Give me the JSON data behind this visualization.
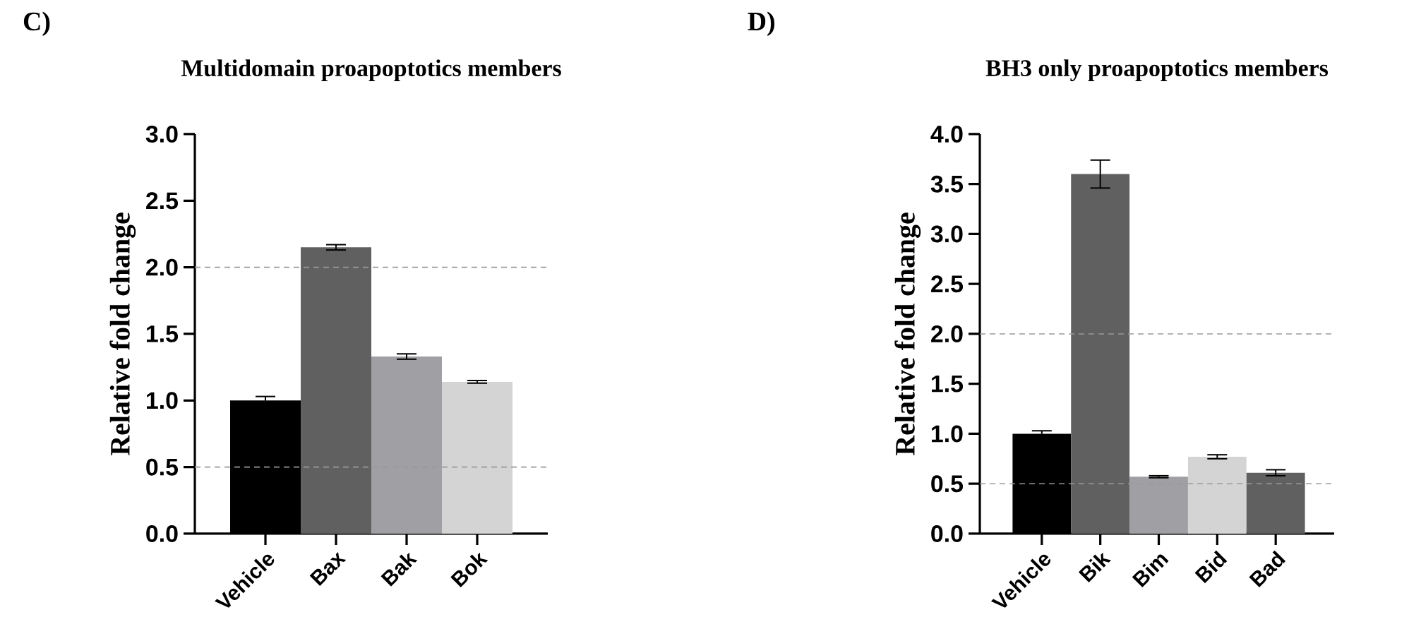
{
  "chart_data": [
    {
      "type": "bar",
      "title": "Multidomain proapoptotics members",
      "ylabel": "Relative fold change",
      "annotations": [
        "C)"
      ],
      "categories": [
        "Vehicle",
        "Bax",
        "Bak",
        "Bok"
      ],
      "values": [
        1.0,
        2.15,
        1.33,
        1.14
      ],
      "errors": [
        0.03,
        0.02,
        0.02,
        0.01
      ],
      "colors": [
        "#000000",
        "#606060",
        "#a0a0a4",
        "#d4d4d4"
      ],
      "ylim": [
        0,
        3
      ],
      "yticks": [
        {
          "value": 0,
          "label": "0.0"
        },
        0.5,
        {
          "value": 1,
          "label": "1.0"
        },
        1.5,
        {
          "value": 2,
          "label": "2.0"
        },
        2.5,
        {
          "value": 3,
          "label": "3.0"
        }
      ],
      "ref_lines": [
        {
          "axis": "y",
          "value": 2,
          "color": "#999999",
          "line_style": "dashed"
        },
        {
          "axis": "y",
          "value": 0.5,
          "color": "#999999",
          "line_style": "dashed"
        }
      ]
    },
    {
      "type": "bar",
      "title": "BH3 only proapoptotics members",
      "ylabel": "Relative fold change",
      "annotations": [
        "D)"
      ],
      "categories": [
        "Vehicle",
        "Bik",
        "Bim",
        "Bid",
        "Bad"
      ],
      "values": [
        1.0,
        3.6,
        0.57,
        0.77,
        0.61
      ],
      "errors": [
        0.03,
        0.14,
        0.01,
        0.02,
        0.03
      ],
      "colors": [
        "#000000",
        "#606060",
        "#a0a0a4",
        "#d4d4d4",
        "#606060"
      ],
      "ylim": [
        0,
        4
      ],
      "yticks": [
        {
          "value": 0,
          "label": "0.0"
        },
        0.5,
        {
          "value": 1,
          "label": "1.0"
        },
        1.5,
        {
          "value": 2,
          "label": "2.0"
        },
        2.5,
        {
          "value": 3,
          "label": "3.0"
        },
        3.5,
        {
          "value": 4,
          "label": "4.0"
        }
      ],
      "ref_lines": [
        {
          "axis": "y",
          "value": 2,
          "color": "#999999",
          "line_style": "dashed"
        },
        {
          "axis": "y",
          "value": 0.5,
          "color": "#999999",
          "line_style": "dashed"
        }
      ]
    }
  ]
}
